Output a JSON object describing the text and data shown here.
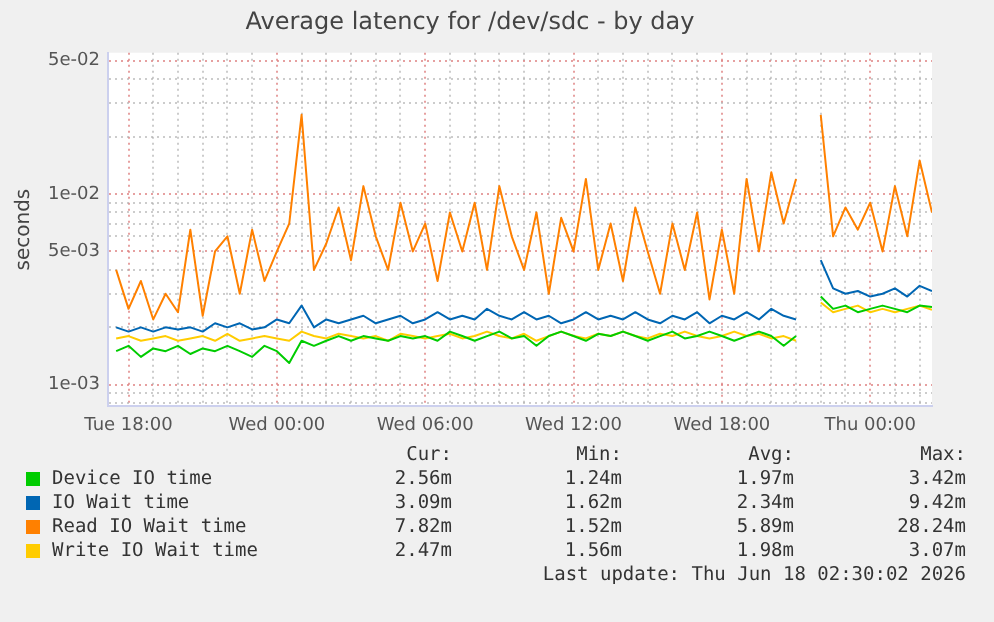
{
  "chart_data": {
    "type": "line",
    "title": "Average latency for /dev/sdc - by day",
    "ylabel": "seconds",
    "log": "y",
    "grid": true,
    "legend": "bottom",
    "marker": "none",
    "line_style": "solid",
    "xlim": [
      "2026-06-16T17:10",
      "2026-06-18T02:30"
    ],
    "xticks": [
      {
        "value": "2026-06-16T18:00",
        "label": "Tue 18:00"
      },
      {
        "value": "2026-06-16T19:00",
        "label": null
      },
      {
        "value": "2026-06-16T20:00",
        "label": null
      },
      {
        "value": "2026-06-16T21:00",
        "label": null
      },
      {
        "value": "2026-06-16T22:00",
        "label": null
      },
      {
        "value": "2026-06-16T23:00",
        "label": null
      },
      {
        "value": "2026-06-17T00:00",
        "label": "Wed 00:00"
      },
      {
        "value": "2026-06-17T01:00",
        "label": null
      },
      {
        "value": "2026-06-17T02:00",
        "label": null
      },
      {
        "value": "2026-06-17T03:00",
        "label": null
      },
      {
        "value": "2026-06-17T04:00",
        "label": null
      },
      {
        "value": "2026-06-17T05:00",
        "label": null
      },
      {
        "value": "2026-06-17T06:00",
        "label": "Wed 06:00"
      },
      {
        "value": "2026-06-17T07:00",
        "label": null
      },
      {
        "value": "2026-06-17T08:00",
        "label": null
      },
      {
        "value": "2026-06-17T09:00",
        "label": null
      },
      {
        "value": "2026-06-17T10:00",
        "label": null
      },
      {
        "value": "2026-06-17T11:00",
        "label": null
      },
      {
        "value": "2026-06-17T12:00",
        "label": "Wed 12:00"
      },
      {
        "value": "2026-06-17T13:00",
        "label": null
      },
      {
        "value": "2026-06-17T14:00",
        "label": null
      },
      {
        "value": "2026-06-17T15:00",
        "label": null
      },
      {
        "value": "2026-06-17T16:00",
        "label": null
      },
      {
        "value": "2026-06-17T17:00",
        "label": null
      },
      {
        "value": "2026-06-17T18:00",
        "label": "Wed 18:00"
      },
      {
        "value": "2026-06-17T19:00",
        "label": null
      },
      {
        "value": "2026-06-17T20:00",
        "label": null
      },
      {
        "value": "2026-06-17T21:00",
        "label": null
      },
      {
        "value": "2026-06-17T22:00",
        "label": null
      },
      {
        "value": "2026-06-17T23:00",
        "label": null
      },
      {
        "value": "2026-06-18T00:00",
        "label": "Thu 00:00"
      },
      {
        "value": "2026-06-18T01:00",
        "label": null
      },
      {
        "value": "2026-06-18T02:00",
        "label": null
      }
    ],
    "ylim": [
      0.00077,
      0.055
    ],
    "yticks": [
      {
        "value": 0.0008,
        "label": null
      },
      {
        "value": 0.0009,
        "label": null
      },
      {
        "value": 0.001,
        "label": "1e-03"
      },
      {
        "value": 0.002,
        "label": null
      },
      {
        "value": 0.003,
        "label": null
      },
      {
        "value": 0.004,
        "label": null
      },
      {
        "value": 0.005,
        "label": "5e-03"
      },
      {
        "value": 0.006,
        "label": null
      },
      {
        "value": 0.007,
        "label": null
      },
      {
        "value": 0.008,
        "label": null
      },
      {
        "value": 0.009,
        "label": null
      },
      {
        "value": 0.01,
        "label": "1e-02"
      },
      {
        "value": 0.02,
        "label": null
      },
      {
        "value": 0.03,
        "label": null
      },
      {
        "value": 0.04,
        "label": null
      },
      {
        "value": 0.05,
        "label": "5e-02"
      }
    ],
    "x": [
      "2026-06-16T17:30",
      "2026-06-16T18:00",
      "2026-06-16T18:30",
      "2026-06-16T19:00",
      "2026-06-16T19:30",
      "2026-06-16T20:00",
      "2026-06-16T20:30",
      "2026-06-16T21:00",
      "2026-06-16T21:30",
      "2026-06-16T22:00",
      "2026-06-16T22:30",
      "2026-06-16T23:00",
      "2026-06-16T23:30",
      "2026-06-17T00:00",
      "2026-06-17T00:30",
      "2026-06-17T01:00",
      "2026-06-17T01:30",
      "2026-06-17T02:00",
      "2026-06-17T02:30",
      "2026-06-17T03:00",
      "2026-06-17T03:30",
      "2026-06-17T04:00",
      "2026-06-17T04:30",
      "2026-06-17T05:00",
      "2026-06-17T05:30",
      "2026-06-17T06:00",
      "2026-06-17T06:30",
      "2026-06-17T07:00",
      "2026-06-17T07:30",
      "2026-06-17T08:00",
      "2026-06-17T08:30",
      "2026-06-17T09:00",
      "2026-06-17T09:30",
      "2026-06-17T10:00",
      "2026-06-17T10:30",
      "2026-06-17T11:00",
      "2026-06-17T11:30",
      "2026-06-17T12:00",
      "2026-06-17T12:30",
      "2026-06-17T13:00",
      "2026-06-17T13:30",
      "2026-06-17T14:00",
      "2026-06-17T14:30",
      "2026-06-17T15:00",
      "2026-06-17T15:30",
      "2026-06-17T16:00",
      "2026-06-17T16:30",
      "2026-06-17T17:00",
      "2026-06-17T17:30",
      "2026-06-17T18:00",
      "2026-06-17T18:30",
      "2026-06-17T19:00",
      "2026-06-17T19:30",
      "2026-06-17T20:00",
      "2026-06-17T20:30",
      "2026-06-17T21:00",
      "2026-06-17T21:30",
      "2026-06-17T22:00",
      "2026-06-17T22:30",
      "2026-06-17T23:00",
      "2026-06-17T23:30",
      "2026-06-18T00:00",
      "2026-06-18T00:30",
      "2026-06-18T01:00",
      "2026-06-18T01:30",
      "2026-06-18T02:00",
      "2026-06-18T02:30"
    ],
    "series": [
      {
        "name": "Device IO time",
        "color": "#00cc00",
        "values": [
          0.0015,
          0.0016,
          0.0014,
          0.00155,
          0.0015,
          0.0016,
          0.00145,
          0.00155,
          0.0015,
          0.0016,
          0.0015,
          0.0014,
          0.0016,
          0.0015,
          0.0013,
          0.0017,
          0.0016,
          0.0017,
          0.0018,
          0.0017,
          0.0018,
          0.00175,
          0.0017,
          0.0018,
          0.00175,
          0.0018,
          0.0017,
          0.0019,
          0.0018,
          0.0017,
          0.0018,
          0.0019,
          0.00175,
          0.0018,
          0.0016,
          0.0018,
          0.0019,
          0.0018,
          0.0017,
          0.00185,
          0.0018,
          0.0019,
          0.0018,
          0.0017,
          0.0018,
          0.0019,
          0.00175,
          0.0018,
          0.0019,
          0.0018,
          0.0017,
          0.0018,
          0.0019,
          0.0018,
          0.0016,
          0.0018,
          null,
          0.0029,
          0.0025,
          0.0026,
          0.0024,
          0.0025,
          0.0026,
          0.0025,
          0.0024,
          0.0026,
          0.00256
        ]
      },
      {
        "name": "IO Wait time",
        "color": "#0066b3",
        "values": [
          0.002,
          0.0019,
          0.002,
          0.0019,
          0.002,
          0.00195,
          0.002,
          0.0019,
          0.0021,
          0.002,
          0.0021,
          0.00195,
          0.002,
          0.0022,
          0.0021,
          0.0026,
          0.002,
          0.0022,
          0.0021,
          0.0022,
          0.0023,
          0.0021,
          0.0022,
          0.0023,
          0.0021,
          0.0022,
          0.0024,
          0.0022,
          0.0023,
          0.0022,
          0.0025,
          0.0023,
          0.0022,
          0.0024,
          0.0022,
          0.0023,
          0.0021,
          0.0022,
          0.0024,
          0.0022,
          0.0023,
          0.0022,
          0.0024,
          0.0022,
          0.0021,
          0.0023,
          0.0022,
          0.0024,
          0.0021,
          0.0023,
          0.0022,
          0.0024,
          0.0022,
          0.0025,
          0.0023,
          0.0022,
          null,
          0.0045,
          0.0032,
          0.003,
          0.0031,
          0.0029,
          0.003,
          0.0032,
          0.0029,
          0.0033,
          0.0031
        ]
      },
      {
        "name": "Read IO Wait time",
        "color": "#ff8000",
        "values": [
          0.004,
          0.0025,
          0.0035,
          0.0022,
          0.003,
          0.0024,
          0.0065,
          0.0023,
          0.005,
          0.006,
          0.003,
          0.0065,
          0.0035,
          0.005,
          0.007,
          0.026,
          0.004,
          0.0055,
          0.0085,
          0.0045,
          0.011,
          0.006,
          0.004,
          0.009,
          0.005,
          0.007,
          0.0035,
          0.008,
          0.005,
          0.009,
          0.004,
          0.011,
          0.006,
          0.004,
          0.008,
          0.003,
          0.0075,
          0.005,
          0.012,
          0.004,
          0.007,
          0.0035,
          0.0085,
          0.005,
          0.003,
          0.007,
          0.004,
          0.008,
          0.0028,
          0.0065,
          0.003,
          0.012,
          0.005,
          0.013,
          0.007,
          0.012,
          null,
          0.026,
          0.006,
          0.0085,
          0.0065,
          0.009,
          0.005,
          0.011,
          0.006,
          0.015,
          0.008
        ]
      },
      {
        "name": "Write IO Wait time",
        "color": "#ffcc00",
        "values": [
          0.00175,
          0.0018,
          0.0017,
          0.00175,
          0.0018,
          0.0017,
          0.00175,
          0.0018,
          0.0017,
          0.00185,
          0.0017,
          0.00175,
          0.0018,
          0.00175,
          0.0017,
          0.0019,
          0.0018,
          0.00175,
          0.00185,
          0.0018,
          0.00175,
          0.0018,
          0.0017,
          0.00185,
          0.0018,
          0.00175,
          0.0018,
          0.00185,
          0.00175,
          0.0018,
          0.0019,
          0.0018,
          0.00175,
          0.00185,
          0.0017,
          0.0018,
          0.0019,
          0.0018,
          0.00175,
          0.00185,
          0.0018,
          0.0019,
          0.0018,
          0.00175,
          0.00185,
          0.0018,
          0.0019,
          0.0018,
          0.00175,
          0.0018,
          0.0019,
          0.0018,
          0.00185,
          0.00175,
          0.0018,
          0.0017,
          null,
          0.0027,
          0.0024,
          0.0025,
          0.0026,
          0.0024,
          0.0025,
          0.0024,
          0.0025,
          0.0026,
          0.00247
        ]
      }
    ],
    "annotations": [
      "Cur:",
      "Min:",
      "Avg:",
      "Max:",
      "2.56m",
      "1.24m",
      "1.97m",
      "3.42m",
      "3.09m",
      "1.62m",
      "2.34m",
      "9.42m",
      "7.82m",
      "1.52m",
      "5.89m",
      "28.24m",
      "2.47m",
      "1.56m",
      "1.98m",
      "3.07m",
      "Last update: Thu Jun 18 02:30:02 2026"
    ]
  }
}
